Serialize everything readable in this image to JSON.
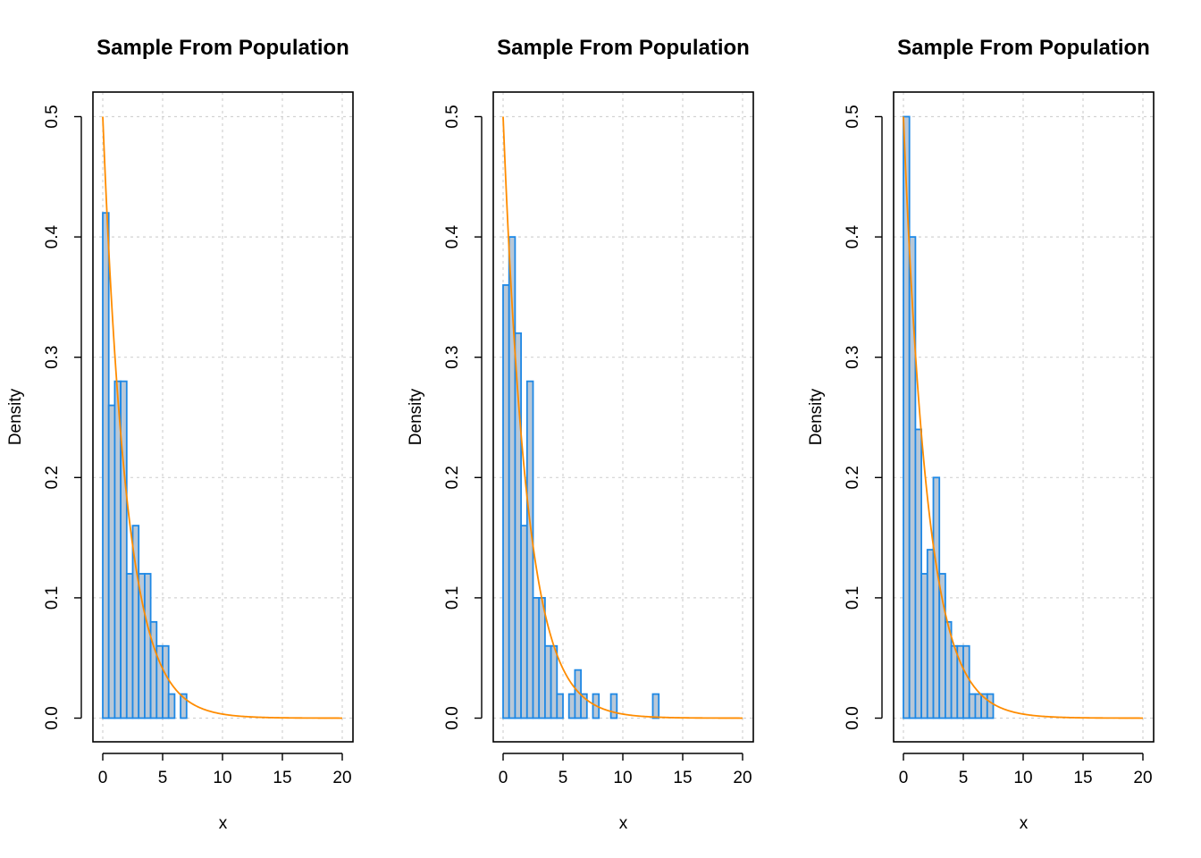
{
  "colors": {
    "bar_fill": "#b8c8d8",
    "bar_stroke": "#1e88e5",
    "curve": "#ff8c00",
    "grid": "#d3d3d3",
    "axis": "#000000"
  },
  "chart_data": [
    {
      "type": "bar",
      "title": "Sample From Population",
      "xlabel": "x",
      "ylabel": "Density",
      "xlim": [
        0,
        20
      ],
      "ylim": [
        0,
        0.5
      ],
      "xticks": [
        0,
        5,
        10,
        15,
        20
      ],
      "yticks": [
        0.0,
        0.1,
        0.2,
        0.3,
        0.4,
        0.5
      ],
      "ytick_labels": [
        "0.0",
        "0.1",
        "0.2",
        "0.3",
        "0.4",
        "0.5"
      ],
      "grid": true,
      "bin_width": 0.5,
      "bins_start": 0,
      "values": [
        0.42,
        0.26,
        0.28,
        0.28,
        0.12,
        0.16,
        0.12,
        0.12,
        0.08,
        0.06,
        0.06,
        0.02,
        0,
        0.02
      ],
      "density_curve": {
        "family": "exponential",
        "rate": 0.5,
        "x_range": [
          0,
          20
        ]
      }
    },
    {
      "type": "bar",
      "title": "Sample From Population",
      "xlabel": "x",
      "ylabel": "Density",
      "xlim": [
        0,
        20
      ],
      "ylim": [
        0,
        0.5
      ],
      "xticks": [
        0,
        5,
        10,
        15,
        20
      ],
      "yticks": [
        0.0,
        0.1,
        0.2,
        0.3,
        0.4,
        0.5
      ],
      "ytick_labels": [
        "0.0",
        "0.1",
        "0.2",
        "0.3",
        "0.4",
        "0.5"
      ],
      "grid": true,
      "bin_width": 0.5,
      "bins_start": 0,
      "values": [
        0.36,
        0.4,
        0.32,
        0.16,
        0.28,
        0.1,
        0.1,
        0.06,
        0.06,
        0.02,
        0,
        0.02,
        0.04,
        0.02,
        0,
        0.02,
        0,
        0,
        0.02,
        0,
        0,
        0,
        0,
        0,
        0,
        0.02
      ],
      "density_curve": {
        "family": "exponential",
        "rate": 0.5,
        "x_range": [
          0,
          20
        ]
      }
    },
    {
      "type": "bar",
      "title": "Sample From Population",
      "xlabel": "x",
      "ylabel": "Density",
      "xlim": [
        0,
        20
      ],
      "ylim": [
        0,
        0.5
      ],
      "xticks": [
        0,
        5,
        10,
        15,
        20
      ],
      "yticks": [
        0.0,
        0.1,
        0.2,
        0.3,
        0.4,
        0.5
      ],
      "ytick_labels": [
        "0.0",
        "0.1",
        "0.2",
        "0.3",
        "0.4",
        "0.5"
      ],
      "grid": true,
      "bin_width": 0.5,
      "bins_start": 0,
      "values": [
        0.5,
        0.4,
        0.24,
        0.12,
        0.14,
        0.2,
        0.12,
        0.08,
        0.06,
        0.06,
        0.06,
        0.02,
        0.02,
        0.02,
        0.02
      ],
      "density_curve": {
        "family": "exponential",
        "rate": 0.5,
        "x_range": [
          0,
          20
        ]
      }
    }
  ]
}
